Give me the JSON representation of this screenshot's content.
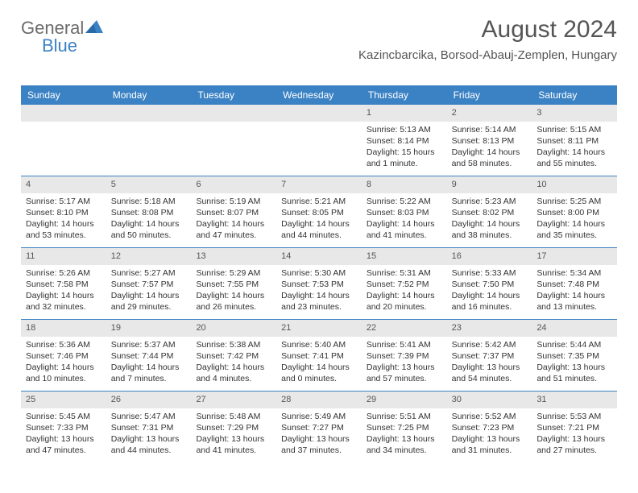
{
  "logo": {
    "part1": "General",
    "part2": "Blue"
  },
  "header": {
    "month_title": "August 2024",
    "location": "Kazincbarcika, Borsod-Abauj-Zemplen, Hungary"
  },
  "colors": {
    "brand_blue": "#3b82c4",
    "header_bg": "#3b82c4",
    "daynum_bg": "#e8e8e8",
    "text_main": "#333333",
    "text_muted": "#555555",
    "logo_gray": "#6b6b6b"
  },
  "weekdays": [
    "Sunday",
    "Monday",
    "Tuesday",
    "Wednesday",
    "Thursday",
    "Friday",
    "Saturday"
  ],
  "weeks": [
    [
      {
        "empty": true
      },
      {
        "empty": true
      },
      {
        "empty": true
      },
      {
        "empty": true
      },
      {
        "day": "1",
        "sunrise": "Sunrise: 5:13 AM",
        "sunset": "Sunset: 8:14 PM",
        "daylight1": "Daylight: 15 hours",
        "daylight2": "and 1 minute."
      },
      {
        "day": "2",
        "sunrise": "Sunrise: 5:14 AM",
        "sunset": "Sunset: 8:13 PM",
        "daylight1": "Daylight: 14 hours",
        "daylight2": "and 58 minutes."
      },
      {
        "day": "3",
        "sunrise": "Sunrise: 5:15 AM",
        "sunset": "Sunset: 8:11 PM",
        "daylight1": "Daylight: 14 hours",
        "daylight2": "and 55 minutes."
      }
    ],
    [
      {
        "day": "4",
        "sunrise": "Sunrise: 5:17 AM",
        "sunset": "Sunset: 8:10 PM",
        "daylight1": "Daylight: 14 hours",
        "daylight2": "and 53 minutes."
      },
      {
        "day": "5",
        "sunrise": "Sunrise: 5:18 AM",
        "sunset": "Sunset: 8:08 PM",
        "daylight1": "Daylight: 14 hours",
        "daylight2": "and 50 minutes."
      },
      {
        "day": "6",
        "sunrise": "Sunrise: 5:19 AM",
        "sunset": "Sunset: 8:07 PM",
        "daylight1": "Daylight: 14 hours",
        "daylight2": "and 47 minutes."
      },
      {
        "day": "7",
        "sunrise": "Sunrise: 5:21 AM",
        "sunset": "Sunset: 8:05 PM",
        "daylight1": "Daylight: 14 hours",
        "daylight2": "and 44 minutes."
      },
      {
        "day": "8",
        "sunrise": "Sunrise: 5:22 AM",
        "sunset": "Sunset: 8:03 PM",
        "daylight1": "Daylight: 14 hours",
        "daylight2": "and 41 minutes."
      },
      {
        "day": "9",
        "sunrise": "Sunrise: 5:23 AM",
        "sunset": "Sunset: 8:02 PM",
        "daylight1": "Daylight: 14 hours",
        "daylight2": "and 38 minutes."
      },
      {
        "day": "10",
        "sunrise": "Sunrise: 5:25 AM",
        "sunset": "Sunset: 8:00 PM",
        "daylight1": "Daylight: 14 hours",
        "daylight2": "and 35 minutes."
      }
    ],
    [
      {
        "day": "11",
        "sunrise": "Sunrise: 5:26 AM",
        "sunset": "Sunset: 7:58 PM",
        "daylight1": "Daylight: 14 hours",
        "daylight2": "and 32 minutes."
      },
      {
        "day": "12",
        "sunrise": "Sunrise: 5:27 AM",
        "sunset": "Sunset: 7:57 PM",
        "daylight1": "Daylight: 14 hours",
        "daylight2": "and 29 minutes."
      },
      {
        "day": "13",
        "sunrise": "Sunrise: 5:29 AM",
        "sunset": "Sunset: 7:55 PM",
        "daylight1": "Daylight: 14 hours",
        "daylight2": "and 26 minutes."
      },
      {
        "day": "14",
        "sunrise": "Sunrise: 5:30 AM",
        "sunset": "Sunset: 7:53 PM",
        "daylight1": "Daylight: 14 hours",
        "daylight2": "and 23 minutes."
      },
      {
        "day": "15",
        "sunrise": "Sunrise: 5:31 AM",
        "sunset": "Sunset: 7:52 PM",
        "daylight1": "Daylight: 14 hours",
        "daylight2": "and 20 minutes."
      },
      {
        "day": "16",
        "sunrise": "Sunrise: 5:33 AM",
        "sunset": "Sunset: 7:50 PM",
        "daylight1": "Daylight: 14 hours",
        "daylight2": "and 16 minutes."
      },
      {
        "day": "17",
        "sunrise": "Sunrise: 5:34 AM",
        "sunset": "Sunset: 7:48 PM",
        "daylight1": "Daylight: 14 hours",
        "daylight2": "and 13 minutes."
      }
    ],
    [
      {
        "day": "18",
        "sunrise": "Sunrise: 5:36 AM",
        "sunset": "Sunset: 7:46 PM",
        "daylight1": "Daylight: 14 hours",
        "daylight2": "and 10 minutes."
      },
      {
        "day": "19",
        "sunrise": "Sunrise: 5:37 AM",
        "sunset": "Sunset: 7:44 PM",
        "daylight1": "Daylight: 14 hours",
        "daylight2": "and 7 minutes."
      },
      {
        "day": "20",
        "sunrise": "Sunrise: 5:38 AM",
        "sunset": "Sunset: 7:42 PM",
        "daylight1": "Daylight: 14 hours",
        "daylight2": "and 4 minutes."
      },
      {
        "day": "21",
        "sunrise": "Sunrise: 5:40 AM",
        "sunset": "Sunset: 7:41 PM",
        "daylight1": "Daylight: 14 hours",
        "daylight2": "and 0 minutes."
      },
      {
        "day": "22",
        "sunrise": "Sunrise: 5:41 AM",
        "sunset": "Sunset: 7:39 PM",
        "daylight1": "Daylight: 13 hours",
        "daylight2": "and 57 minutes."
      },
      {
        "day": "23",
        "sunrise": "Sunrise: 5:42 AM",
        "sunset": "Sunset: 7:37 PM",
        "daylight1": "Daylight: 13 hours",
        "daylight2": "and 54 minutes."
      },
      {
        "day": "24",
        "sunrise": "Sunrise: 5:44 AM",
        "sunset": "Sunset: 7:35 PM",
        "daylight1": "Daylight: 13 hours",
        "daylight2": "and 51 minutes."
      }
    ],
    [
      {
        "day": "25",
        "sunrise": "Sunrise: 5:45 AM",
        "sunset": "Sunset: 7:33 PM",
        "daylight1": "Daylight: 13 hours",
        "daylight2": "and 47 minutes."
      },
      {
        "day": "26",
        "sunrise": "Sunrise: 5:47 AM",
        "sunset": "Sunset: 7:31 PM",
        "daylight1": "Daylight: 13 hours",
        "daylight2": "and 44 minutes."
      },
      {
        "day": "27",
        "sunrise": "Sunrise: 5:48 AM",
        "sunset": "Sunset: 7:29 PM",
        "daylight1": "Daylight: 13 hours",
        "daylight2": "and 41 minutes."
      },
      {
        "day": "28",
        "sunrise": "Sunrise: 5:49 AM",
        "sunset": "Sunset: 7:27 PM",
        "daylight1": "Daylight: 13 hours",
        "daylight2": "and 37 minutes."
      },
      {
        "day": "29",
        "sunrise": "Sunrise: 5:51 AM",
        "sunset": "Sunset: 7:25 PM",
        "daylight1": "Daylight: 13 hours",
        "daylight2": "and 34 minutes."
      },
      {
        "day": "30",
        "sunrise": "Sunrise: 5:52 AM",
        "sunset": "Sunset: 7:23 PM",
        "daylight1": "Daylight: 13 hours",
        "daylight2": "and 31 minutes."
      },
      {
        "day": "31",
        "sunrise": "Sunrise: 5:53 AM",
        "sunset": "Sunset: 7:21 PM",
        "daylight1": "Daylight: 13 hours",
        "daylight2": "and 27 minutes."
      }
    ]
  ]
}
